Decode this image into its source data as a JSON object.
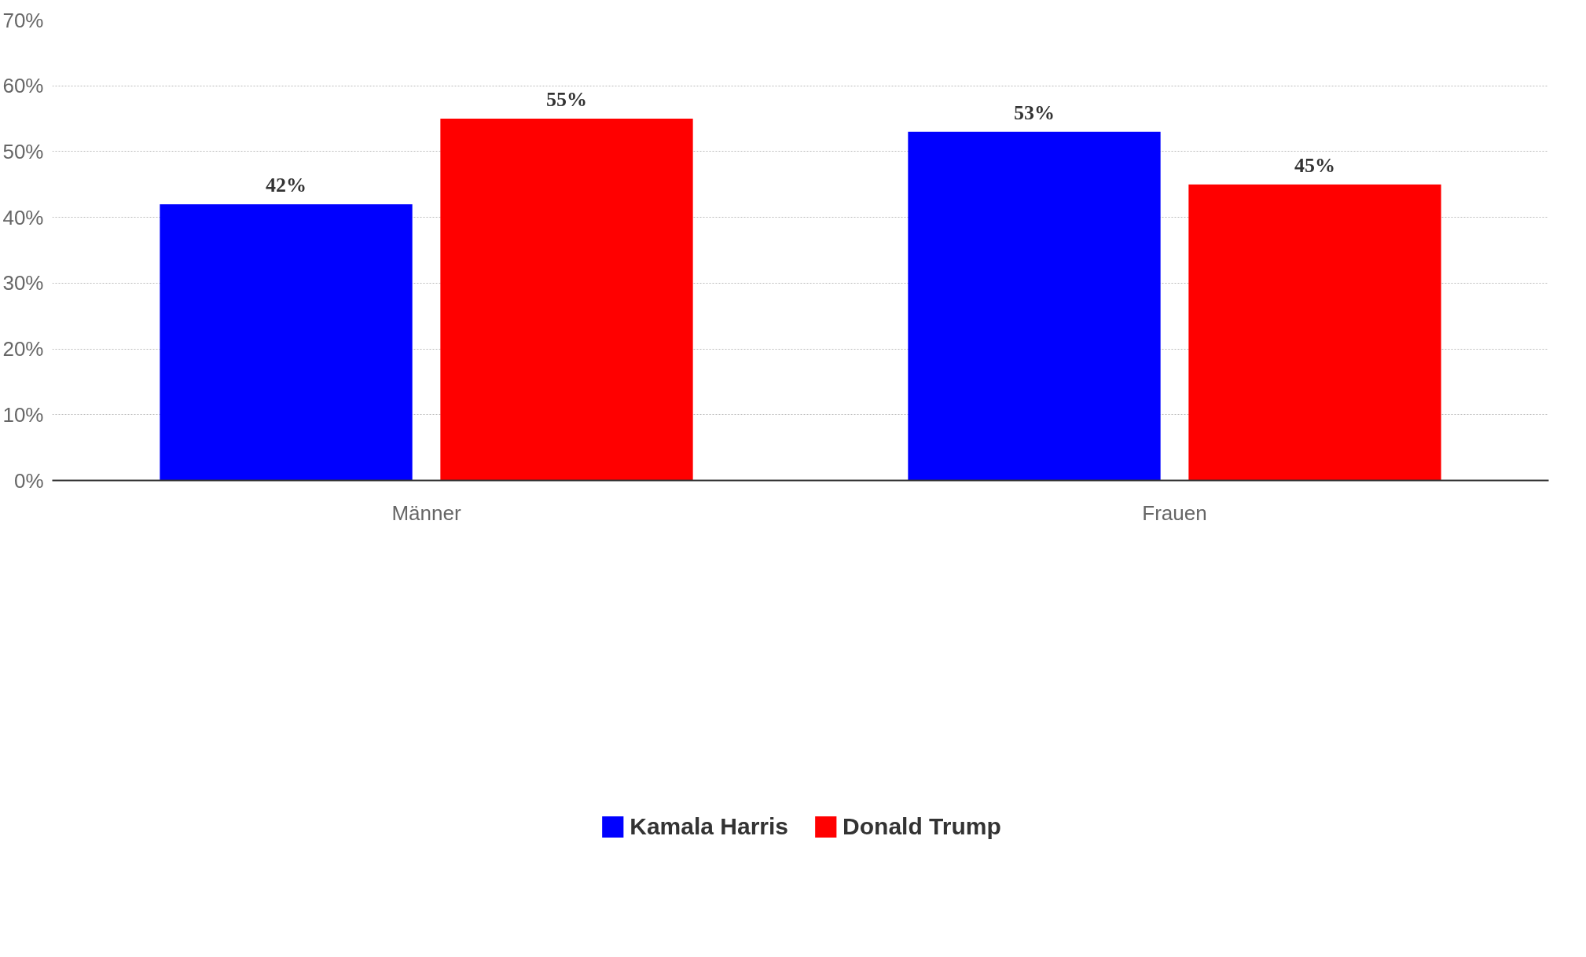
{
  "chart_data": {
    "type": "bar",
    "categories": [
      "Männer",
      "Frauen"
    ],
    "series": [
      {
        "name": "Kamala Harris",
        "color": "#0000ff",
        "values": [
          42,
          53
        ]
      },
      {
        "name": "Donald Trump",
        "color": "#ff0000",
        "values": [
          55,
          45
        ]
      }
    ],
    "ylim": [
      0,
      70
    ],
    "yticks": [
      {
        "value": 0,
        "label": "0%"
      },
      {
        "value": 10,
        "label": "10%"
      },
      {
        "value": 20,
        "label": "20%"
      },
      {
        "value": 30,
        "label": "30%"
      },
      {
        "value": 40,
        "label": "40%"
      },
      {
        "value": 50,
        "label": "50%"
      },
      {
        "value": 60,
        "label": "60%"
      },
      {
        "value": 70,
        "label": "70%"
      }
    ],
    "value_labels": [
      [
        "42%",
        "53%"
      ],
      [
        "55%",
        "45%"
      ]
    ],
    "grid": "y",
    "legend": "bottom"
  }
}
